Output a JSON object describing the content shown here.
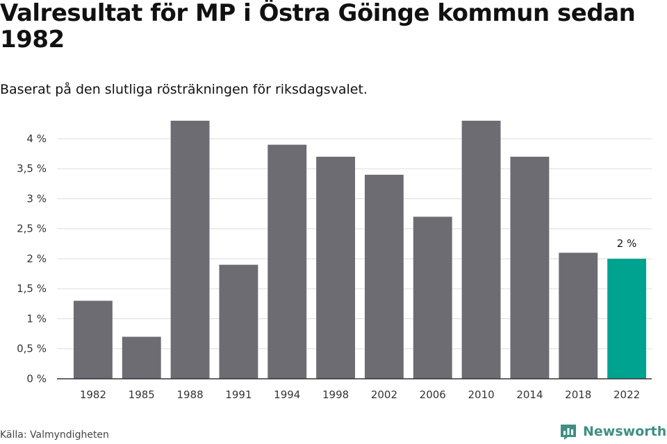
{
  "chart_data": {
    "type": "bar",
    "title": "Valresultat för MP i Östra Göinge kommun sedan 1982",
    "subtitle": "Baserat på den slutliga rösträkningen för riksdagsvalet.",
    "categories": [
      "1982",
      "1985",
      "1988",
      "1991",
      "1994",
      "1998",
      "2002",
      "2006",
      "2010",
      "2014",
      "2018",
      "2022"
    ],
    "values": [
      1.3,
      0.7,
      4.3,
      1.9,
      3.9,
      3.7,
      3.4,
      2.7,
      4.3,
      3.7,
      2.1,
      2.0
    ],
    "ylim": [
      0,
      4.3
    ],
    "yticks": [
      0,
      0.5,
      1,
      1.5,
      2,
      2.5,
      3,
      3.5,
      4
    ],
    "ytick_labels": [
      "0 %",
      "0,5 %",
      "1 %",
      "1,5 %",
      "2 %",
      "2,5 %",
      "3 %",
      "3,5 %",
      "4 %"
    ],
    "grid": true,
    "highlight_index": 11,
    "annotations": [
      {
        "category": "2022",
        "text": "2 %"
      }
    ],
    "colors": {
      "bar": "#6d6c72",
      "highlight": "#00a38f",
      "grid": "#dddddd",
      "axis": "#333333"
    }
  },
  "footer": {
    "source": "Källa: Valmyndigheten",
    "brand": "Newsworthy"
  }
}
